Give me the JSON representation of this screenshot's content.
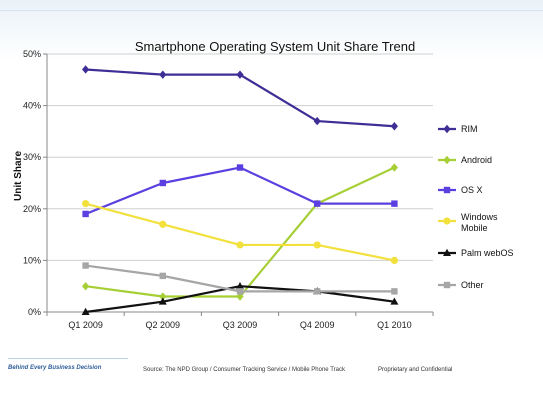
{
  "slide": {
    "tagline": "Behind Every Business Decision",
    "source": "Source: The NPD Group / Consumer Tracking Service / Mobile Phone Track",
    "confidential": "Proprietary and Confidential"
  },
  "chart_data": {
    "type": "line",
    "title": "Smartphone Operating System Unit Share Trend",
    "xlabel": "",
    "ylabel": "Unit Share",
    "categories": [
      "Q1 2009",
      "Q2 2009",
      "Q3 2009",
      "Q4 2009",
      "Q1 2010"
    ],
    "ylim": [
      0,
      50
    ],
    "yticks": [
      "0%",
      "10%",
      "20%",
      "30%",
      "40%",
      "50%"
    ],
    "grid": "horizontal",
    "legend_position": "right",
    "series": [
      {
        "name": "RIM",
        "values": [
          47,
          46,
          46,
          37,
          36
        ],
        "color": "#3e2f96",
        "marker": "diamond"
      },
      {
        "name": "Android",
        "values": [
          5,
          3,
          3,
          21,
          28
        ],
        "color": "#a6cf36",
        "marker": "diamond"
      },
      {
        "name": "OS X",
        "values": [
          19,
          25,
          28,
          21,
          21
        ],
        "color": "#5b3fe0",
        "marker": "square"
      },
      {
        "name": "Windows Mobile",
        "values": [
          21,
          17,
          13,
          13,
          10
        ],
        "color": "#f2e03c",
        "marker": "circle"
      },
      {
        "name": "Palm webOS",
        "values": [
          0,
          2,
          5,
          4,
          2
        ],
        "color": "#111111",
        "marker": "triangle"
      },
      {
        "name": "Other",
        "values": [
          9,
          7,
          4,
          4,
          4
        ],
        "color": "#a6a6a6",
        "marker": "square"
      }
    ]
  }
}
